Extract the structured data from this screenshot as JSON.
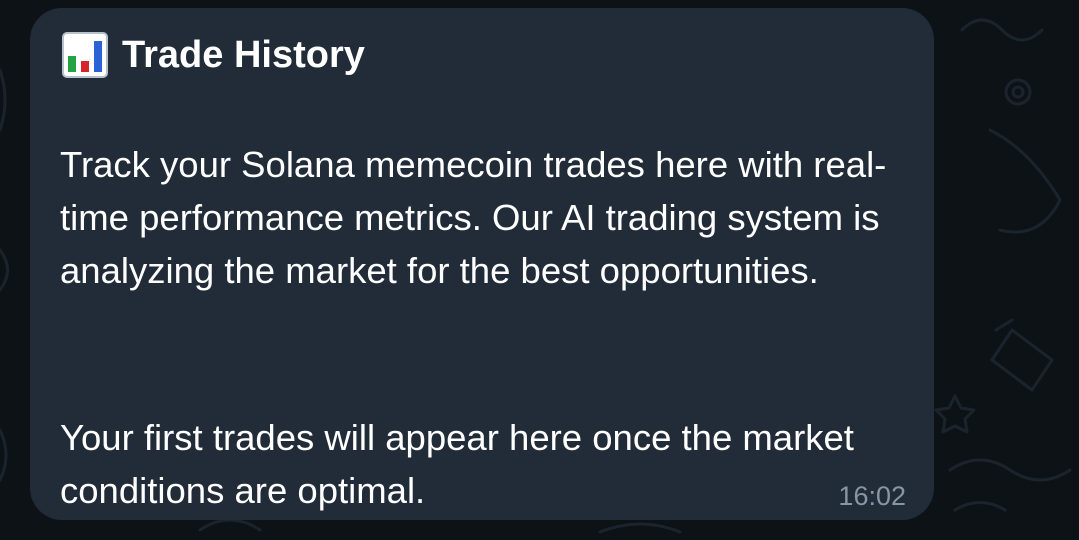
{
  "message": {
    "title_icon": "bar-chart-emoji-icon",
    "title": "Trade History",
    "paragraph_1": "Track your Solana memecoin trades here with real-time performance metrics. Our AI trading system is analyzing the market for the best opportunities.",
    "paragraph_2": "Your first trades will appear here once the market conditions are optimal.",
    "time": "16:02"
  },
  "colors": {
    "background": "#0d1217",
    "bubble": "#222c38",
    "text": "#ffffff",
    "timestamp": "#8796a6"
  }
}
